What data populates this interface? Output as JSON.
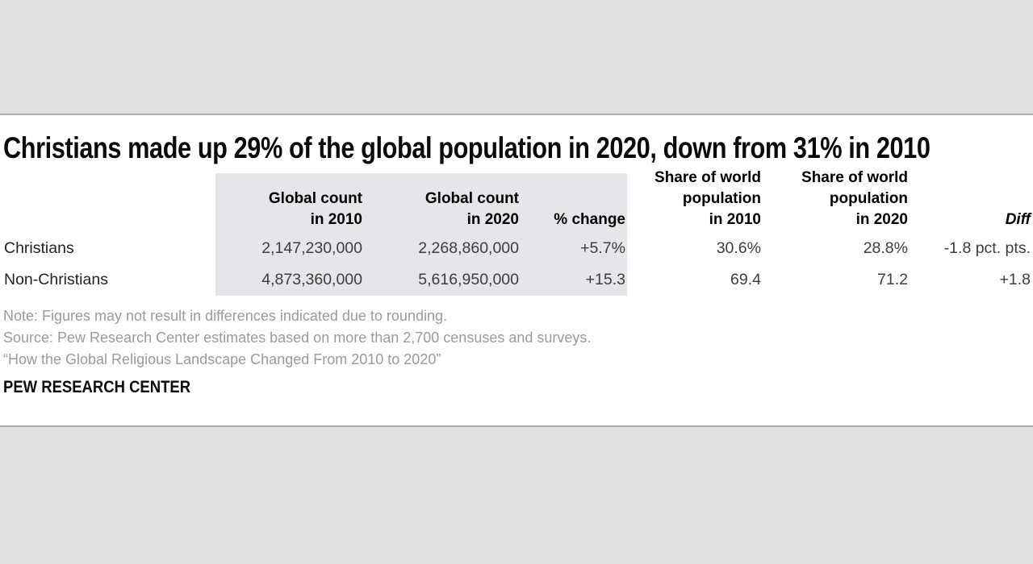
{
  "chart_data": {
    "type": "table",
    "title": "Christians made up 29% of the global population in 2020, down from 31% in 2010",
    "col_headers": [
      "Global count\nin 2010",
      "Global count\nin 2020",
      "% change",
      "Share of world\npopulation\nin 2010",
      "Share of world\npopulation\nin 2020",
      "Diff"
    ],
    "rows": [
      {
        "label": "Christians",
        "values": [
          "2,147,230,000",
          "2,268,860,000",
          "+5.7%",
          "30.6%",
          "28.8%",
          "-1.8 pct. pts."
        ]
      },
      {
        "label": "Non-Christians",
        "values": [
          "4,873,360,000",
          "5,616,950,000",
          "+15.3",
          "69.4",
          "71.2",
          "+1.8"
        ]
      }
    ],
    "notes": [
      "Note: Figures may not result in differences indicated due to rounding.",
      "Source: Pew Research Center estimates based on more than 2,700 censuses and surveys.",
      "“How the Global Religious Landscape Changed From 2010 to 2020”"
    ],
    "brand": "PEW RESEARCH CENTER",
    "layout": {
      "shaded_columns": [
        "Global count in 2010",
        "Global count in 2020",
        "% change"
      ],
      "header_alignment": "right",
      "value_alignment": "right",
      "grid": "off",
      "legend_position": "none"
    },
    "colors": {
      "outer_band_gray": "#e0e0e2",
      "divider_gray": "#aaabad",
      "table_panel_gray": "#e6e5e9",
      "note_text_gray": "#9a9a9a",
      "number_text": "#3d3d3d",
      "label_text": "#222222",
      "header_text": "#000000",
      "background": "#ffffff"
    }
  }
}
